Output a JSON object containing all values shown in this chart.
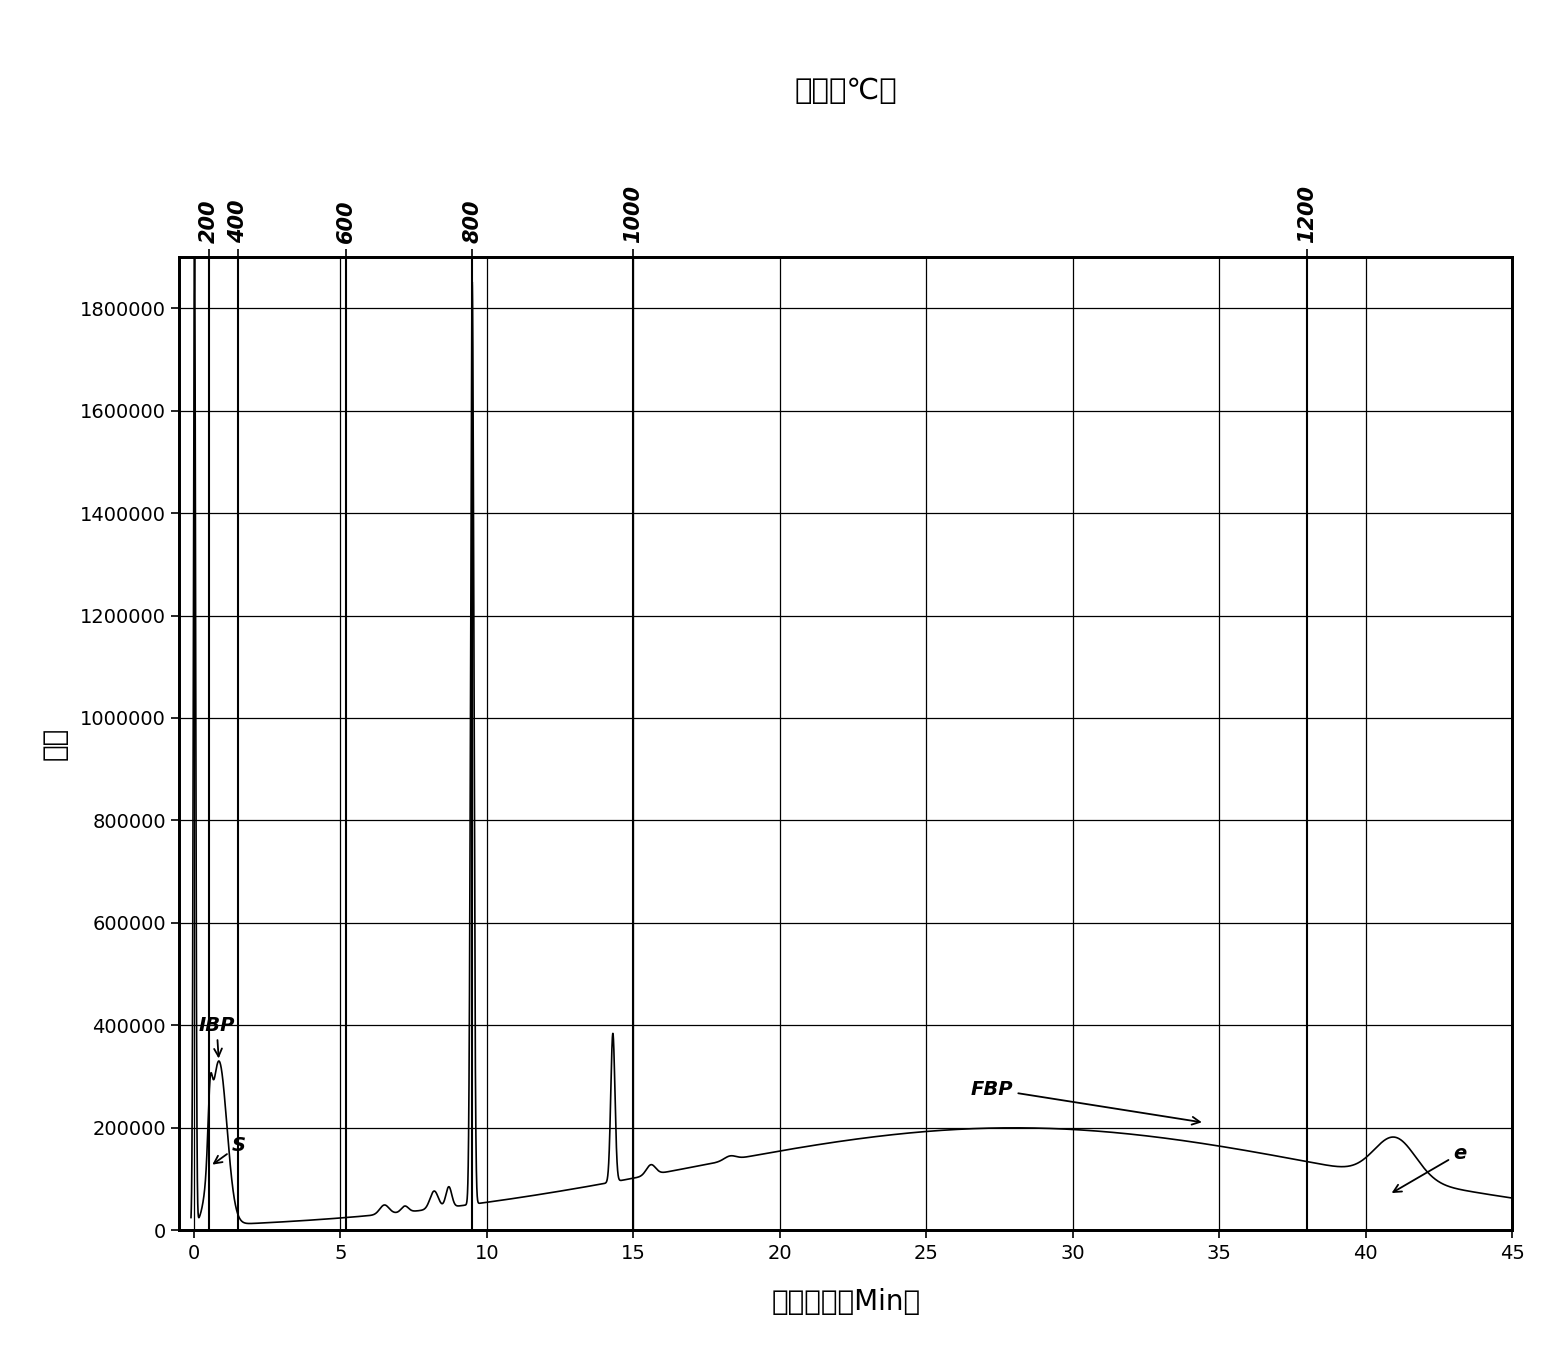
{
  "title_top": "沸点（℃）",
  "xlabel": "保留时间（Min）",
  "ylabel": "信号",
  "xlim": [
    -0.5,
    45
  ],
  "ylim": [
    0,
    1900000
  ],
  "yticks": [
    0,
    200000,
    400000,
    600000,
    800000,
    1000000,
    1200000,
    1400000,
    1600000,
    1800000
  ],
  "xticks": [
    0,
    5,
    10,
    15,
    20,
    25,
    30,
    35,
    40,
    45
  ],
  "bp_times": [
    0.5,
    1.5,
    5.2,
    9.5,
    15.0,
    38.0
  ],
  "bp_labels": [
    "200\n400",
    "400",
    "600",
    "800",
    "1000",
    "1200"
  ],
  "bp_labels_clean": [
    "200",
    "400",
    "600",
    "800",
    "1000",
    "1200"
  ],
  "bp_times_200": 0.5,
  "bp_times_400": 1.5,
  "bp_times_600": 5.2,
  "bp_times_800": 9.5,
  "bp_times_1000": 15.0,
  "bp_times_1200": 38.0,
  "background_color": "#ffffff",
  "line_color": "#000000"
}
